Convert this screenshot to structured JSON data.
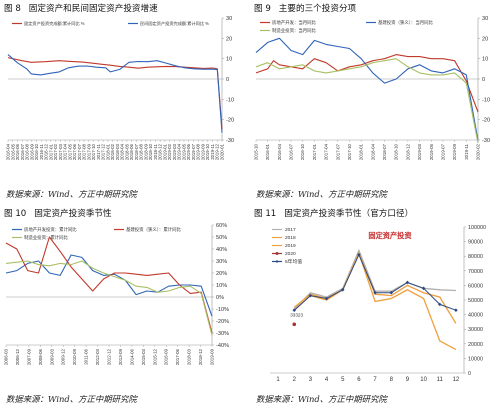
{
  "colors": {
    "red": "#c0392b",
    "blue": "#2f64b8",
    "olive": "#a9c063",
    "gray": "#b0b0b0",
    "orange": "#f0a040",
    "darkred": "#a33535",
    "navy": "#2d4a80"
  },
  "panels": [
    {
      "fig_label": "图 8",
      "title": "固定资产和民间固定资产投资增速",
      "source": "数据来源：Wind、方正中期研究院"
    },
    {
      "fig_label": "图 9",
      "title": "主要的三个投资分项",
      "source": "数据来源：Wind、方正中期研究院"
    },
    {
      "fig_label": "图 10",
      "title": "固定资产投资季节性",
      "source": "数据来源：Wind、方正中期研究院"
    },
    {
      "fig_label": "图 11",
      "title": "固定资产投资季节性（官方口径）",
      "source": "数据来源：Wind、方正中期研究院"
    }
  ],
  "chart_data": [
    {
      "type": "line",
      "title": "固定资产和民间固定资产投资增速",
      "x_tick_labels": [
        "2016-04",
        "2016-05",
        "2016-06",
        "2016-07",
        "2016-08",
        "2016-09",
        "2016-10",
        "2016-11",
        "2016-12",
        "2017-01",
        "2017-02",
        "2017-03",
        "2017-04",
        "2017-05",
        "2017-06",
        "2017-07",
        "2017-08",
        "2017-09",
        "2017-10",
        "2017-11",
        "2017-12",
        "2018-01",
        "2018-02",
        "2018-03",
        "2018-04",
        "2018-05",
        "2018-06",
        "2018-07",
        "2018-08",
        "2018-09",
        "2018-10",
        "2018-11",
        "2018-12",
        "2019-01",
        "2019-02",
        "2019-03",
        "2019-04",
        "2019-05",
        "2019-06",
        "2019-07",
        "2019-08",
        "2019-09",
        "2019-10",
        "2019-11",
        "2019-12",
        "2020-01"
      ],
      "ylim": [
        -30,
        30
      ],
      "y_ticks": [
        -30,
        -20,
        -10,
        0,
        10,
        20,
        30
      ],
      "grid": false,
      "legend": "top",
      "series": [
        {
          "name": "固定资产投资完成额:累计同比 %",
          "color": "red",
          "points": [
            [
              0,
              10.5
            ],
            [
              3,
              9
            ],
            [
              5,
              8.2
            ],
            [
              8,
              8.5
            ],
            [
              11,
              9
            ],
            [
              13,
              8.7
            ],
            [
              16,
              8.3
            ],
            [
              18,
              7.8
            ],
            [
              20,
              7.3
            ],
            [
              22,
              6.8
            ],
            [
              24,
              6.2
            ],
            [
              26,
              5.8
            ],
            [
              28,
              5.3
            ],
            [
              30,
              5.8
            ],
            [
              32,
              6.0
            ],
            [
              34,
              6.2
            ],
            [
              36,
              6.1
            ],
            [
              38,
              5.8
            ],
            [
              40,
              5.5
            ],
            [
              42,
              5.2
            ],
            [
              44,
              5.4
            ],
            [
              45,
              5.0
            ],
            [
              46,
              -24.5
            ]
          ]
        },
        {
          "name": "民间固定资产投资完成额:累计同比 %",
          "color": "blue",
          "points": [
            [
              0,
              12
            ],
            [
              2,
              8
            ],
            [
              4,
              5
            ],
            [
              5,
              2.5
            ],
            [
              7,
              2.0
            ],
            [
              9,
              2.8
            ],
            [
              11,
              3.5
            ],
            [
              13,
              5.5
            ],
            [
              15,
              6.3
            ],
            [
              17,
              6.4
            ],
            [
              19,
              5.8
            ],
            [
              21,
              5.5
            ],
            [
              22,
              3.5
            ],
            [
              24,
              4.7
            ],
            [
              26,
              8.2
            ],
            [
              28,
              8.6
            ],
            [
              30,
              8.5
            ],
            [
              32,
              9.0
            ],
            [
              34,
              7.8
            ],
            [
              36,
              6.5
            ],
            [
              38,
              5.5
            ],
            [
              40,
              5.0
            ],
            [
              42,
              4.8
            ],
            [
              44,
              4.8
            ],
            [
              45,
              4.7
            ],
            [
              46,
              -26.4
            ]
          ]
        }
      ]
    },
    {
      "type": "line",
      "title": "主要的三个投资分项",
      "x_tick_labels": [
        "2015-10",
        "2016-01",
        "2016-04",
        "2016-07",
        "2016-10",
        "2017-01",
        "2017-04",
        "2017-07",
        "2017-10",
        "2018-01",
        "2018-04",
        "2018-07",
        "2018-10",
        "2018-12",
        "2019-03",
        "2019-05",
        "2019-07",
        "2019-09",
        "2019-11",
        "2020-02"
      ],
      "ylim": [
        -30,
        30
      ],
      "y_ticks": [
        -30,
        -20,
        -10,
        0,
        10,
        20,
        30
      ],
      "grid": false,
      "legend": "top",
      "series": [
        {
          "name": "房地产开发：当月同比",
          "color": "red",
          "points": [
            [
              0,
              3
            ],
            [
              1,
              5
            ],
            [
              1.5,
              9
            ],
            [
              2,
              7
            ],
            [
              3,
              6
            ],
            [
              4,
              5
            ],
            [
              5,
              10
            ],
            [
              6,
              8
            ],
            [
              7,
              4
            ],
            [
              8,
              6
            ],
            [
              9,
              7
            ],
            [
              10,
              9
            ],
            [
              11,
              10
            ],
            [
              12,
              12
            ],
            [
              13,
              11
            ],
            [
              14,
              11
            ],
            [
              15,
              10
            ],
            [
              16,
              10
            ],
            [
              17,
              9
            ],
            [
              18,
              -1
            ],
            [
              19,
              -16.3
            ]
          ]
        },
        {
          "name": "基建投资（狭义）：当月同比",
          "color": "blue",
          "points": [
            [
              0,
              13
            ],
            [
              1,
              18
            ],
            [
              2,
              20
            ],
            [
              3,
              14
            ],
            [
              4,
              12
            ],
            [
              5,
              19
            ],
            [
              6,
              17
            ],
            [
              7,
              16
            ],
            [
              8,
              15
            ],
            [
              9,
              10
            ],
            [
              10,
              3
            ],
            [
              11,
              -2
            ],
            [
              12,
              0
            ],
            [
              13,
              5
            ],
            [
              14,
              7
            ],
            [
              15,
              4
            ],
            [
              16,
              3
            ],
            [
              17,
              5
            ],
            [
              18,
              2
            ],
            [
              19,
              -30.3
            ]
          ]
        },
        {
          "name": "制造业投资：当月同比",
          "color": "olive",
          "points": [
            [
              0,
              6
            ],
            [
              1,
              8
            ],
            [
              2,
              5
            ],
            [
              3,
              6
            ],
            [
              4,
              7
            ],
            [
              5,
              4
            ],
            [
              6,
              3
            ],
            [
              7,
              4
            ],
            [
              8,
              5
            ],
            [
              9,
              6
            ],
            [
              10,
              8
            ],
            [
              11,
              9
            ],
            [
              12,
              10
            ],
            [
              13,
              6
            ],
            [
              14,
              3
            ],
            [
              15,
              2
            ],
            [
              16,
              2
            ],
            [
              17,
              3
            ],
            [
              18,
              -2
            ],
            [
              19,
              -31.5
            ]
          ]
        }
      ]
    },
    {
      "type": "line",
      "title": "固定资产投资季节性",
      "x_tick_labels": [
        "2006-03",
        "2006-12",
        "2007-09",
        "2008-06",
        "2009-03",
        "2009-12",
        "2010-09",
        "2011-06",
        "2012-03",
        "2012-12",
        "2013-09",
        "2014-06",
        "2015-03",
        "2015-12",
        "2016-09",
        "2017-06",
        "2018-03",
        "2018-12",
        "2019-09"
      ],
      "ylim": [
        -40,
        60
      ],
      "y_ticks": [
        -40,
        -30,
        -20,
        -10,
        0,
        10,
        20,
        30,
        40,
        50,
        60
      ],
      "grid": false,
      "legend": "top",
      "series": [
        {
          "name": "房地产开发投资：累计同比",
          "color": "blue",
          "points": [
            [
              0,
              20
            ],
            [
              1,
              22
            ],
            [
              2,
              28
            ],
            [
              3,
              30
            ],
            [
              4,
              20
            ],
            [
              5,
              18
            ],
            [
              6,
              35
            ],
            [
              7,
              33
            ],
            [
              8,
              22
            ],
            [
              9,
              18
            ],
            [
              10,
              19
            ],
            [
              11,
              14
            ],
            [
              12,
              2
            ],
            [
              13,
              5
            ],
            [
              14,
              4
            ],
            [
              15,
              9
            ],
            [
              16,
              10
            ],
            [
              17,
              10
            ],
            [
              18,
              9
            ],
            [
              19,
              -16
            ]
          ]
        },
        {
          "name": "基建投资（狭义）：累计同比",
          "color": "red",
          "points": [
            [
              0,
              45
            ],
            [
              1,
              40
            ],
            [
              2,
              22
            ],
            [
              3,
              20
            ],
            [
              4,
              50
            ],
            [
              5,
              38
            ],
            [
              6,
              25
            ],
            [
              7,
              15
            ],
            [
              8,
              5
            ],
            [
              9,
              15
            ],
            [
              10,
              20
            ],
            [
              11,
              20
            ],
            [
              12,
              19
            ],
            [
              13,
              18
            ],
            [
              14,
              19
            ],
            [
              15,
              20
            ],
            [
              16,
              10
            ],
            [
              17,
              3
            ],
            [
              18,
              4
            ],
            [
              19,
              -30
            ]
          ]
        },
        {
          "name": "制造业投资：累计同比",
          "color": "olive",
          "points": [
            [
              0,
              28
            ],
            [
              1,
              29
            ],
            [
              2,
              30
            ],
            [
              3,
              27
            ],
            [
              4,
              26
            ],
            [
              5,
              28
            ],
            [
              6,
              27
            ],
            [
              7,
              30
            ],
            [
              8,
              24
            ],
            [
              9,
              20
            ],
            [
              10,
              17
            ],
            [
              11,
              14
            ],
            [
              12,
              9
            ],
            [
              13,
              8
            ],
            [
              14,
              4
            ],
            [
              15,
              5
            ],
            [
              16,
              8
            ],
            [
              17,
              9
            ],
            [
              18,
              3
            ],
            [
              19,
              -32
            ]
          ]
        }
      ]
    },
    {
      "type": "line",
      "title": "固定资产投资季节性（官方口径）",
      "chart_title_inside": "固定资产投资",
      "categories": [
        "1",
        "2",
        "3",
        "4",
        "5",
        "6",
        "7",
        "8",
        "9",
        "10",
        "11",
        "12"
      ],
      "ylim": [
        0,
        100000
      ],
      "y_ticks": [
        0,
        10000,
        20000,
        30000,
        40000,
        50000,
        60000,
        70000,
        80000,
        90000,
        100000
      ],
      "grid": false,
      "legend": "top-left",
      "annotation": "33323",
      "series": [
        {
          "name": "2017",
          "color": "gray",
          "values": [
            null,
            44000,
            55000,
            52000,
            58000,
            84000,
            56000,
            56000,
            62000,
            58000,
            57000,
            56500
          ]
        },
        {
          "name": "2018",
          "color": "orange",
          "values": [
            null,
            43000,
            53000,
            50000,
            57000,
            82000,
            54000,
            53000,
            60000,
            55000,
            52000,
            34000
          ]
        },
        {
          "name": "2019",
          "color": "orange",
          "values": [
            null,
            45000,
            54000,
            51000,
            57000,
            82000,
            49000,
            51000,
            57000,
            51000,
            22000,
            16000
          ]
        },
        {
          "name": "2020",
          "color": "darkred",
          "values": [
            null,
            33323,
            null,
            null,
            null,
            null,
            null,
            null,
            null,
            null,
            null,
            null
          ]
        },
        {
          "name": "5年均值",
          "color": "navy",
          "values": [
            null,
            43000,
            53000,
            51000,
            57000,
            81000,
            55000,
            55000,
            62000,
            58000,
            47000,
            43000
          ]
        }
      ]
    }
  ]
}
